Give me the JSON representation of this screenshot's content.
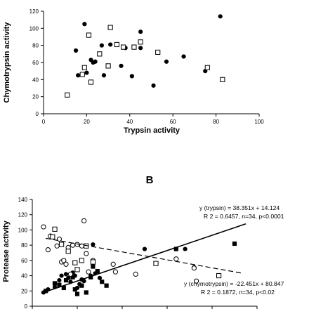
{
  "chart_data": [
    {
      "type": "scatter",
      "title": "",
      "xlabel": "Trypsin activity",
      "ylabel": "Chymotrypsin activity",
      "xlim": [
        0,
        100
      ],
      "ylim": [
        0,
        120
      ],
      "xticks": [
        "0",
        "20",
        "40",
        "60",
        "80",
        "100"
      ],
      "yticks": [
        "0",
        "20",
        "40",
        "60",
        "80",
        "100",
        "120"
      ],
      "series": [
        {
          "marker": "filled-circle",
          "points": [
            [
              15,
              74
            ],
            [
              16,
              45
            ],
            [
              19,
              105
            ],
            [
              20,
              48
            ],
            [
              22,
              63
            ],
            [
              23,
              60
            ],
            [
              24,
              61
            ],
            [
              27,
              80
            ],
            [
              28,
              45
            ],
            [
              31,
              81
            ],
            [
              36,
              56
            ],
            [
              38,
              77
            ],
            [
              41,
              44
            ],
            [
              45,
              77
            ],
            [
              45,
              96
            ],
            [
              51,
              33
            ],
            [
              57,
              61
            ],
            [
              65,
              67
            ],
            [
              75,
              50
            ],
            [
              82,
              114
            ]
          ]
        },
        {
          "marker": "open-square",
          "points": [
            [
              11,
              22
            ],
            [
              18,
              46
            ],
            [
              19,
              54
            ],
            [
              21,
              92
            ],
            [
              22,
              37
            ],
            [
              26,
              70
            ],
            [
              30,
              56
            ],
            [
              31,
              101
            ],
            [
              34,
              81
            ],
            [
              37,
              78
            ],
            [
              42,
              78
            ],
            [
              45,
              84
            ],
            [
              53,
              72
            ],
            [
              76,
              54
            ],
            [
              83,
              40
            ]
          ]
        }
      ]
    },
    {
      "type": "scatter",
      "panel_label": "B",
      "title": "",
      "xlabel": "",
      "ylabel": "Protease activity",
      "ylim": [
        0,
        140
      ],
      "yticks": [
        "0",
        "20",
        "40",
        "60",
        "80",
        "100",
        "120",
        "140"
      ],
      "x_range": [
        0,
        100
      ],
      "series": [
        {
          "marker": "filled-circle",
          "points": [
            [
              5,
              18
            ],
            [
              7,
              22
            ],
            [
              10,
              25
            ],
            [
              12,
              34
            ],
            [
              13,
              40
            ],
            [
              15,
              42
            ],
            [
              16,
              37
            ],
            [
              17,
              32
            ],
            [
              18,
              44
            ],
            [
              19,
              40
            ],
            [
              20,
              24
            ],
            [
              21,
              29
            ],
            [
              22,
              35
            ],
            [
              23,
              33
            ],
            [
              25,
              45
            ],
            [
              26,
              40
            ],
            [
              28,
              43
            ],
            [
              30,
              37
            ],
            [
              27,
              81
            ],
            [
              50,
              75
            ],
            [
              68,
              75
            ],
            [
              72,
              51
            ]
          ]
        },
        {
          "marker": "filled-square",
          "points": [
            [
              6,
              20
            ],
            [
              10,
              30
            ],
            [
              12,
              28
            ],
            [
              14,
              24
            ],
            [
              15,
              34
            ],
            [
              18,
              38
            ],
            [
              19,
              22
            ],
            [
              20,
              16
            ],
            [
              22,
              27
            ],
            [
              24,
              18
            ],
            [
              26,
              38
            ],
            [
              27,
              52
            ],
            [
              29,
              46
            ],
            [
              31,
              32
            ],
            [
              33,
              27
            ],
            [
              64,
              75
            ],
            [
              90,
              82
            ]
          ]
        },
        {
          "marker": "open-circle",
          "points": [
            [
              5,
              104
            ],
            [
              8,
              92
            ],
            [
              7,
              74
            ],
            [
              11,
              79
            ],
            [
              12,
              88
            ],
            [
              13,
              58
            ],
            [
              14,
              60
            ],
            [
              15,
              55
            ],
            [
              16,
              77
            ],
            [
              17,
              42
            ],
            [
              18,
              80
            ],
            [
              20,
              81
            ],
            [
              22,
              79
            ],
            [
              23,
              112
            ],
            [
              24,
              69
            ],
            [
              25,
              45
            ],
            [
              27,
              60
            ],
            [
              36,
              55
            ],
            [
              37,
              45
            ],
            [
              46,
              42
            ],
            [
              64,
              62
            ],
            [
              72,
              50
            ],
            [
              73,
              33
            ]
          ]
        },
        {
          "marker": "open-square",
          "points": [
            [
              9,
              91
            ],
            [
              10,
              101
            ],
            [
              13,
              81
            ],
            [
              16,
              72
            ],
            [
              19,
              57
            ],
            [
              20,
              48
            ],
            [
              22,
              60
            ],
            [
              24,
              79
            ],
            [
              27,
              58
            ],
            [
              55,
              56
            ],
            [
              83,
              40
            ]
          ]
        }
      ],
      "fits": [
        {
          "name": "trypsin",
          "style": "solid",
          "from": [
            4,
            17
          ],
          "to": [
            95,
            108
          ]
        },
        {
          "name": "chymotrypsin",
          "style": "dashed",
          "from": [
            6,
            89
          ],
          "to": [
            94,
            43
          ]
        }
      ]
    }
  ],
  "annotations": {
    "trypsin_eq": "y (trypsin) = 38.351x + 14.124",
    "trypsin_stats": "R 2 = 0.6457, n=34, p<0.0001",
    "chymo_eq": "y (chymotrypsin) = -22.451x + 80.847",
    "chymo_stats": "R 2 = 0.1872, n=34, p<0.02"
  }
}
